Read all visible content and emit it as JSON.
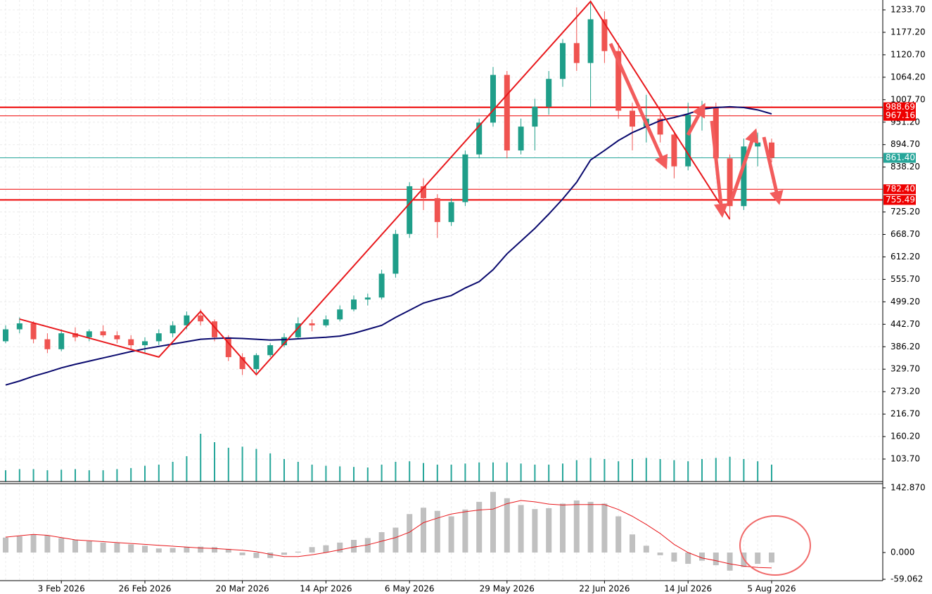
{
  "chart_data": [
    {
      "type": "candlestick",
      "categories": [
        null,
        null,
        null,
        null,
        "3 Feb 2026",
        null,
        null,
        null,
        null,
        null,
        "26 Feb 2026",
        null,
        null,
        null,
        null,
        null,
        null,
        "20 Mar 2026",
        null,
        null,
        null,
        null,
        null,
        "14 Apr 2026",
        null,
        null,
        null,
        null,
        null,
        "6 May 2026",
        null,
        null,
        null,
        null,
        null,
        null,
        "29 May 2026",
        null,
        null,
        null,
        null,
        null,
        null,
        "22 Jun 2026",
        null,
        null,
        null,
        null,
        null,
        "14 Jul 2026",
        null,
        null,
        null,
        null,
        null,
        "5 Aug 2026"
      ],
      "open": [
        400,
        430,
        445,
        405,
        380,
        420,
        410,
        425,
        415,
        405,
        390,
        400,
        420,
        440,
        465,
        450,
        410,
        360,
        330,
        365,
        390,
        410,
        445,
        440,
        455,
        480,
        505,
        510,
        570,
        670,
        790,
        760,
        700,
        750,
        870,
        950,
        1070,
        880,
        940,
        990,
        1060,
        1150,
        1100,
        1210,
        1130,
        980,
        940,
        960,
        920,
        840,
        970,
        990,
        860,
        740,
        890,
        900
      ],
      "high": [
        440,
        460,
        450,
        420,
        430,
        435,
        430,
        440,
        425,
        415,
        410,
        430,
        450,
        475,
        480,
        455,
        415,
        370,
        370,
        395,
        420,
        460,
        455,
        465,
        490,
        515,
        520,
        580,
        680,
        800,
        810,
        770,
        760,
        880,
        960,
        1090,
        1080,
        960,
        1010,
        1080,
        1160,
        1240,
        1255,
        1230,
        1150,
        1000,
        1020,
        990,
        930,
        1000,
        1005,
        1000,
        870,
        910,
        925,
        910
      ],
      "low": [
        395,
        420,
        395,
        370,
        375,
        400,
        400,
        410,
        395,
        380,
        370,
        390,
        410,
        430,
        440,
        400,
        350,
        315,
        320,
        360,
        385,
        405,
        425,
        435,
        450,
        475,
        490,
        505,
        560,
        660,
        730,
        660,
        690,
        740,
        860,
        940,
        860,
        870,
        880,
        970,
        1040,
        1080,
        990,
        1100,
        960,
        880,
        900,
        900,
        810,
        830,
        930,
        840,
        710,
        730,
        840,
        850
      ],
      "close": [
        430,
        445,
        405,
        380,
        420,
        410,
        425,
        415,
        405,
        390,
        400,
        420,
        440,
        465,
        450,
        410,
        360,
        330,
        365,
        390,
        410,
        445,
        440,
        455,
        480,
        505,
        510,
        570,
        670,
        790,
        760,
        700,
        750,
        870,
        950,
        1070,
        880,
        940,
        990,
        1060,
        1150,
        1100,
        1210,
        1130,
        980,
        940,
        960,
        920,
        840,
        970,
        990,
        860,
        740,
        890,
        900,
        861.4
      ],
      "up_color": "#1f9e89",
      "down_color": "#ef5350",
      "ylim": [
        47.1,
        1258.5
      ],
      "yticks": [
        {
          "value": 1233.7,
          "label": "1233.70"
        },
        {
          "value": 1177.2,
          "label": "1177.20"
        },
        {
          "value": 1120.7,
          "label": "1120.70"
        },
        {
          "value": 1064.2,
          "label": "1064.20"
        },
        {
          "value": 1007.7,
          "label": "1007.70"
        },
        {
          "value": 951.2,
          "label": "951.20"
        },
        {
          "value": 894.7,
          "label": "894.70"
        },
        {
          "value": 838.2,
          "label": "838.20"
        },
        {
          "value": 725.2,
          "label": "725.20"
        },
        {
          "value": 668.7,
          "label": "668.70"
        },
        {
          "value": 612.2,
          "label": "612.20"
        },
        {
          "value": 555.7,
          "label": "555.70"
        },
        {
          "value": 499.2,
          "label": "499.20"
        },
        {
          "value": 442.7,
          "label": "442.70"
        },
        {
          "value": 386.2,
          "label": "386.20"
        },
        {
          "value": 329.7,
          "label": "329.70"
        },
        {
          "value": 273.2,
          "label": "273.20"
        },
        {
          "value": 216.7,
          "label": "216.70"
        },
        {
          "value": 160.2,
          "label": "160.20"
        },
        {
          "value": 103.7,
          "label": "103.70"
        }
      ],
      "grid": true,
      "ma": {
        "color": "#0a0a6e",
        "values": [
          290,
          300,
          312,
          322,
          333,
          342,
          350,
          358,
          366,
          374,
          381,
          387,
          393,
          399,
          405,
          407,
          408,
          407,
          405,
          403,
          404,
          406,
          408,
          410,
          413,
          420,
          430,
          440,
          460,
          478,
          496,
          506,
          515,
          534,
          550,
          580,
          620,
          652,
          684,
          720,
          758,
          800,
          856,
          880,
          905,
          925,
          940,
          955,
          963,
          972,
          984,
          988,
          990,
          988,
          982,
          972
        ]
      },
      "zigzag": {
        "color": "#e8181c",
        "x": [
          1,
          11,
          14,
          18,
          42,
          52
        ],
        "y": [
          455.7,
          360.3,
          475.2,
          316.1,
          1254.9,
          706.8
        ]
      },
      "levels": [
        {
          "value": 988.69,
          "color": "#ee0000",
          "width": 2
        },
        {
          "value": 967.16,
          "color": "#ee0000",
          "width": 1
        },
        {
          "value": 861.4,
          "label": "861.40",
          "color": "#26a69a",
          "width": 1
        },
        {
          "value": 782.4,
          "label": "782.40",
          "color": "#ee0000",
          "width": 1
        },
        {
          "value": 755.49,
          "color": "#ee0000",
          "width": 2
        }
      ],
      "volume": {
        "color": "#26a69a",
        "ylim": [
          0,
          100
        ],
        "values": [
          20,
          22,
          22,
          20,
          21,
          22,
          20,
          20,
          22,
          24,
          28,
          30,
          35,
          45,
          85,
          70,
          60,
          62,
          58,
          50,
          40,
          35,
          30,
          28,
          27,
          26,
          25,
          30,
          35,
          36,
          33,
          30,
          30,
          32,
          34,
          34,
          34,
          32,
          30,
          30,
          32,
          38,
          42,
          40,
          36,
          40,
          42,
          40,
          38,
          36,
          40,
          42,
          44,
          40,
          36,
          30
        ]
      }
    },
    {
      "type": "macd",
      "histogram": {
        "color": "#c0c0c0",
        "values": [
          33,
          36,
          40,
          38,
          32,
          28,
          25,
          22,
          21,
          18,
          15,
          9,
          10,
          12,
          13,
          12,
          8,
          -6,
          -12,
          -12,
          -5,
          2,
          12,
          16,
          22,
          28,
          32,
          45,
          55,
          85,
          99,
          92,
          80,
          95,
          112,
          134,
          120,
          105,
          96,
          98,
          108,
          115,
          112,
          108,
          80,
          40,
          15,
          -6,
          -20,
          -25,
          -18,
          -28,
          -40,
          -32,
          -25,
          -22
        ]
      },
      "signal": {
        "color": "#e8181c",
        "values": [
          34,
          37,
          40,
          38,
          33,
          28,
          26,
          24,
          22,
          20,
          18,
          16,
          14,
          12,
          10,
          9,
          7,
          5,
          2,
          -4,
          -9,
          -9,
          -5,
          0,
          6,
          12,
          17,
          25,
          33,
          45,
          66,
          76,
          85,
          90,
          94,
          96,
          108,
          115,
          112,
          107,
          105,
          106,
          106,
          106,
          95,
          80,
          62,
          42,
          18,
          0,
          -12,
          -18,
          -25,
          -30,
          -33,
          -34
        ]
      },
      "ylim": [
        -62.1,
        152.2
      ],
      "yticks": [
        {
          "value": 142.87,
          "label": "142.870"
        },
        {
          "value": 0,
          "label": "0.000"
        },
        {
          "value": -59.062,
          "label": "-59.062"
        }
      ]
    }
  ]
}
